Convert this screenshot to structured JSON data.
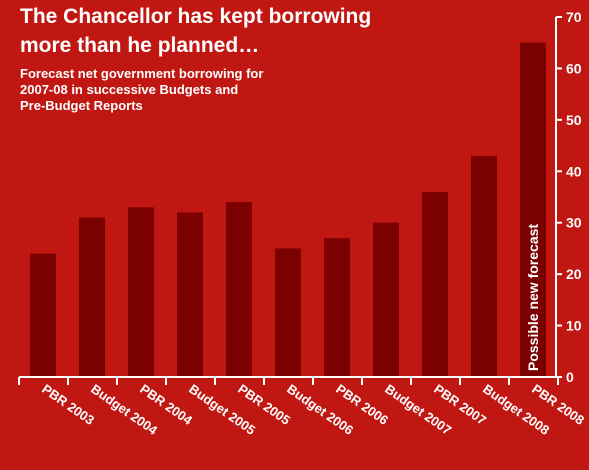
{
  "title_lines": [
    "The Chancellor has kept borrowing",
    "more than he planned…"
  ],
  "subtitle_lines": [
    "Forecast net government borrowing for",
    "2007-08 in successive Budgets and",
    "Pre-Budget Reports"
  ],
  "colors": {
    "background": "#c11712",
    "bar": "#7b0000",
    "text": "#ffffff"
  },
  "chart_data": {
    "type": "bar",
    "categories": [
      "PBR 2003",
      "Budget 2004",
      "PBR 2004",
      "Budget 2005",
      "PBR 2005",
      "Budget 2006",
      "PBR 2006",
      "Budget 2007",
      "PBR 2007",
      "Budget 2008",
      "PBR 2008"
    ],
    "values": [
      24,
      31,
      33,
      32,
      34,
      25,
      27,
      30,
      36,
      43,
      65
    ],
    "ylim": [
      0,
      70
    ],
    "yticks": [
      0,
      10,
      20,
      30,
      40,
      50,
      60,
      70
    ],
    "y_axis_position": "right",
    "grid": false,
    "annotations": [
      {
        "category": "PBR 2008",
        "text": "Possible new forecast"
      }
    ]
  }
}
